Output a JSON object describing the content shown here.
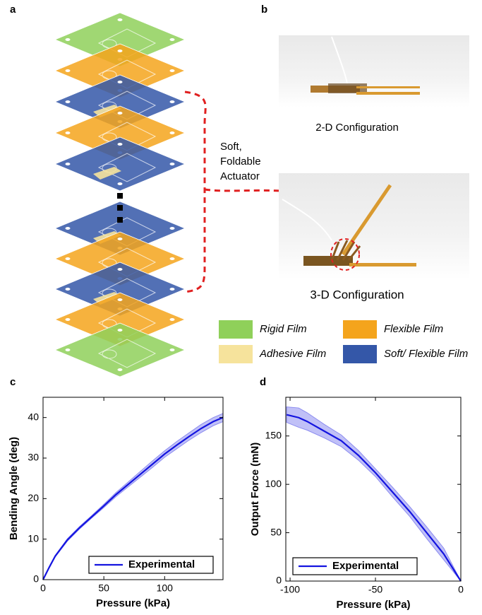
{
  "panel_labels": [
    "a",
    "b",
    "c",
    "d"
  ],
  "annotation": [
    "Soft,",
    "Foldable",
    "Actuator"
  ],
  "captions": [
    "2-D Configuration",
    "3-D Configuration"
  ],
  "film_legend": [
    {
      "label": "Rigid Film",
      "color": "#8fd05a"
    },
    {
      "label": "Flexible Film",
      "color": "#f4a41c"
    },
    {
      "label": "Adhesive Film",
      "color": "#f6e39c"
    },
    {
      "label": "Soft/ Flexible Film",
      "color": "#3457a8"
    }
  ],
  "chart_data": [
    {
      "type": "line",
      "xlabel": "Pressure (kPa)",
      "ylabel": "Bending Angle (deg)",
      "x": [
        0,
        5,
        10,
        20,
        30,
        40,
        50,
        60,
        70,
        80,
        90,
        100,
        110,
        120,
        130,
        140,
        148
      ],
      "series": [
        {
          "name": "Experimental",
          "color": "#1414e0",
          "band_color": "#8c8cf0",
          "values": [
            0,
            3,
            5.8,
            9.8,
            12.8,
            15.5,
            18.2,
            21,
            23.5,
            26,
            28.5,
            31,
            33.2,
            35.3,
            37.3,
            39,
            40
          ],
          "error": [
            0,
            0,
            0.2,
            0.3,
            0.3,
            0.3,
            0.4,
            0.5,
            0.6,
            0.7,
            0.8,
            0.8,
            0.9,
            0.9,
            1,
            1,
            1
          ]
        }
      ],
      "xlim": [
        0,
        148
      ],
      "ylim": [
        0,
        45
      ],
      "xticks": [
        0,
        50,
        100
      ],
      "yticks": [
        0,
        10,
        20,
        30,
        40
      ],
      "legend": "lower right"
    },
    {
      "type": "line",
      "xlabel": "Pressure (kPa)",
      "ylabel": "Output Force (mN)",
      "x": [
        -102,
        -95,
        -90,
        -80,
        -70,
        -60,
        -50,
        -40,
        -30,
        -20,
        -10,
        0
      ],
      "series": [
        {
          "name": "Experimental",
          "color": "#1414e0",
          "band_color": "#8c8cf0",
          "values": [
            172,
            169,
            165,
            155,
            145,
            130,
            112,
            92,
            72,
            50,
            28,
            0
          ],
          "error": [
            8,
            10,
            9,
            7,
            6,
            5,
            4,
            5,
            5,
            6,
            6,
            0
          ]
        }
      ],
      "xlim": [
        -102.5,
        0
      ],
      "ylim": [
        0,
        190
      ],
      "xticks": [
        -100,
        -50,
        0
      ],
      "yticks": [
        0,
        50,
        100,
        150
      ],
      "legend": "lower left"
    }
  ]
}
